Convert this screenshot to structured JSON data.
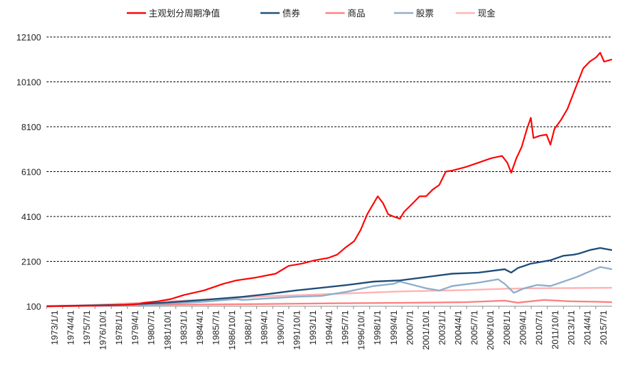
{
  "chart_data": {
    "type": "line",
    "title": "",
    "xlabel": "",
    "ylabel": "",
    "ylim": [
      100,
      12100
    ],
    "y_ticks": [
      100,
      2100,
      4100,
      6100,
      8100,
      10100,
      12100
    ],
    "grid": "horizontal dashed",
    "legend_position": "top",
    "x_tick_labels": [
      "1973/1/1",
      "1974/4/1",
      "1975/7/1",
      "1976/10/1",
      "1978/1/1",
      "1979/4/1",
      "1980/7/1",
      "1981/10/1",
      "1983/1/1",
      "1984/4/1",
      "1985/7/1",
      "1986/10/1",
      "1988/1/1",
      "1989/4/1",
      "1990/7/1",
      "1991/10/1",
      "1993/1/1",
      "1994/4/1",
      "1995/7/1",
      "1996/10/1",
      "1998/1/1",
      "1999/4/1",
      "2000/7/1",
      "2001/10/1",
      "2003/1/1",
      "2004/4/1",
      "2005/7/1",
      "2006/10/1",
      "2008/1/1",
      "2009/4/1",
      "2010/7/1",
      "2011/10/1",
      "2013/1/1",
      "2014/4/1",
      "2015/7/1"
    ],
    "x_range": [
      1973.0,
      2016.2
    ],
    "series": [
      {
        "name": "主观划分周期净值",
        "color": "#ff0000",
        "points": [
          [
            1973.0,
            100
          ],
          [
            1975,
            110
          ],
          [
            1977,
            125
          ],
          [
            1979,
            160
          ],
          [
            1980,
            200
          ],
          [
            1980.5,
            260
          ],
          [
            1981.5,
            320
          ],
          [
            1982.5,
            420
          ],
          [
            1983.5,
            600
          ],
          [
            1985,
            800
          ],
          [
            1986.5,
            1100
          ],
          [
            1987.5,
            1250
          ],
          [
            1989,
            1380
          ],
          [
            1990.5,
            1550
          ],
          [
            1991.5,
            1900
          ],
          [
            1992.5,
            2000
          ],
          [
            1993.5,
            2150
          ],
          [
            1994.5,
            2250
          ],
          [
            1995.2,
            2400
          ],
          [
            1995.8,
            2700
          ],
          [
            1996.5,
            3000
          ],
          [
            1997,
            3500
          ],
          [
            1997.5,
            4200
          ],
          [
            1998,
            4700
          ],
          [
            1998.3,
            5000
          ],
          [
            1998.7,
            4700
          ],
          [
            1999.1,
            4200
          ],
          [
            1999.5,
            4100
          ],
          [
            2000,
            4000
          ],
          [
            2000.3,
            4300
          ],
          [
            2001,
            4700
          ],
          [
            2001.5,
            5000
          ],
          [
            2002,
            5000
          ],
          [
            2002.5,
            5300
          ],
          [
            2003,
            5500
          ],
          [
            2003.5,
            6100
          ],
          [
            2004,
            6150
          ],
          [
            2005,
            6300
          ],
          [
            2005.5,
            6400
          ],
          [
            2006,
            6500
          ],
          [
            2006.5,
            6600
          ],
          [
            2007,
            6700
          ],
          [
            2007.8,
            6800
          ],
          [
            2008.2,
            6500
          ],
          [
            2008.5,
            6050
          ],
          [
            2008.9,
            6700
          ],
          [
            2009.3,
            7200
          ],
          [
            2009.7,
            8000
          ],
          [
            2010,
            8500
          ],
          [
            2010.2,
            7600
          ],
          [
            2010.7,
            7700
          ],
          [
            2011.2,
            7750
          ],
          [
            2011.5,
            7300
          ],
          [
            2011.8,
            8000
          ],
          [
            2012.3,
            8400
          ],
          [
            2012.8,
            8900
          ],
          [
            2013.2,
            9500
          ],
          [
            2013.6,
            10100
          ],
          [
            2014,
            10700
          ],
          [
            2014.5,
            11000
          ],
          [
            2015,
            11200
          ],
          [
            2015.3,
            11400
          ],
          [
            2015.6,
            11000
          ],
          [
            2016.2,
            11100
          ]
        ]
      },
      {
        "name": "债券",
        "color": "#1f4e79",
        "points": [
          [
            1973.0,
            100
          ],
          [
            1976,
            130
          ],
          [
            1979,
            170
          ],
          [
            1982,
            260
          ],
          [
            1985,
            380
          ],
          [
            1988,
            520
          ],
          [
            1990,
            650
          ],
          [
            1992,
            800
          ],
          [
            1994,
            920
          ],
          [
            1996,
            1050
          ],
          [
            1998,
            1200
          ],
          [
            2000,
            1250
          ],
          [
            2002,
            1400
          ],
          [
            2004,
            1550
          ],
          [
            2006,
            1600
          ],
          [
            2008,
            1750
          ],
          [
            2008.5,
            1600
          ],
          [
            2009,
            1800
          ],
          [
            2010,
            2000
          ],
          [
            2011.5,
            2150
          ],
          [
            2012.5,
            2350
          ],
          [
            2013.3,
            2400
          ],
          [
            2013.7,
            2450
          ],
          [
            2014.5,
            2600
          ],
          [
            2015.3,
            2700
          ],
          [
            2016.2,
            2600
          ]
        ]
      },
      {
        "name": "商品",
        "color": "#ff8080",
        "points": [
          [
            1973.0,
            100
          ],
          [
            1975,
            120
          ],
          [
            1980,
            160
          ],
          [
            1985,
            180
          ],
          [
            1990,
            200
          ],
          [
            1995,
            230
          ],
          [
            2000,
            250
          ],
          [
            2005,
            280
          ],
          [
            2008,
            350
          ],
          [
            2009,
            260
          ],
          [
            2011,
            380
          ],
          [
            2013,
            320
          ],
          [
            2015,
            300
          ],
          [
            2016.2,
            280
          ]
        ]
      },
      {
        "name": "股票",
        "color": "#8eaecb",
        "points": [
          [
            1973.0,
            100
          ],
          [
            1976,
            130
          ],
          [
            1980,
            150
          ],
          [
            1985,
            300
          ],
          [
            1987.5,
            420
          ],
          [
            1988,
            380
          ],
          [
            1990,
            450
          ],
          [
            1992,
            520
          ],
          [
            1994,
            560
          ],
          [
            1996,
            750
          ],
          [
            1998,
            1000
          ],
          [
            1999.5,
            1100
          ],
          [
            2000,
            1200
          ],
          [
            2001,
            1050
          ],
          [
            2002,
            900
          ],
          [
            2003,
            800
          ],
          [
            2004,
            1000
          ],
          [
            2006,
            1150
          ],
          [
            2007.5,
            1300
          ],
          [
            2008,
            1100
          ],
          [
            2008.7,
            700
          ],
          [
            2009.5,
            900
          ],
          [
            2010.5,
            1050
          ],
          [
            2011.5,
            1000
          ],
          [
            2012.5,
            1200
          ],
          [
            2013.5,
            1400
          ],
          [
            2014.5,
            1650
          ],
          [
            2015.3,
            1850
          ],
          [
            2016.2,
            1750
          ]
        ]
      },
      {
        "name": "现金",
        "color": "#ffb3b3",
        "points": [
          [
            1973.0,
            100
          ],
          [
            1976,
            150
          ],
          [
            1980,
            250
          ],
          [
            1985,
            400
          ],
          [
            1990,
            550
          ],
          [
            1995,
            650
          ],
          [
            2000,
            760
          ],
          [
            2005,
            820
          ],
          [
            2008,
            880
          ],
          [
            2010,
            900
          ],
          [
            2013,
            910
          ],
          [
            2016.2,
            920
          ]
        ]
      }
    ]
  }
}
